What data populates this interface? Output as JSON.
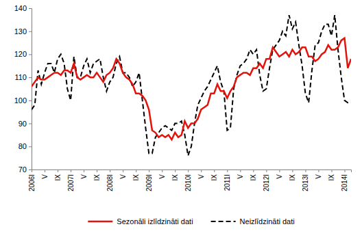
{
  "chart_data": {
    "type": "line",
    "categories": [
      "2006I",
      null,
      null,
      null,
      "V",
      null,
      null,
      null,
      "IX",
      null,
      null,
      null,
      "2007I",
      null,
      null,
      null,
      "V",
      null,
      null,
      null,
      "IX",
      null,
      null,
      null,
      "2008I",
      null,
      null,
      null,
      "V",
      null,
      null,
      null,
      "IX",
      null,
      null,
      null,
      "2009I",
      null,
      null,
      null,
      "V",
      null,
      null,
      null,
      "IX",
      null,
      null,
      null,
      "2010I",
      null,
      null,
      null,
      "V",
      null,
      null,
      null,
      "IX",
      null,
      null,
      null,
      "2011I",
      null,
      null,
      null,
      "V",
      null,
      null,
      null,
      "IX",
      null,
      null,
      null,
      "2012I",
      null,
      null,
      null,
      "V",
      null,
      null,
      null,
      "IX",
      null,
      null,
      null,
      "2013I",
      null,
      null,
      null,
      "V",
      null,
      null,
      null,
      "IX",
      null,
      null,
      null,
      "2014I",
      null,
      null
    ],
    "series": [
      {
        "name": "Sezonāli izlīdzināti dati",
        "color": "#e3120b",
        "line_style": "solid",
        "values": [
          106,
          108,
          110,
          109,
          109,
          110,
          111,
          112,
          112,
          111,
          113,
          113,
          112,
          116,
          110,
          109,
          110,
          111,
          110,
          110,
          112,
          110,
          108,
          111,
          112,
          114,
          118,
          116,
          112,
          110,
          109,
          107,
          103,
          103,
          102,
          100,
          96,
          87,
          86,
          84,
          85,
          84,
          85,
          83,
          86,
          84,
          85,
          91,
          88,
          90,
          90,
          92,
          96,
          97,
          98,
          103,
          103,
          107,
          104,
          104,
          101,
          104,
          106,
          110,
          111,
          112,
          112,
          111,
          114,
          114,
          116,
          114,
          118,
          118,
          123,
          121,
          119,
          120,
          121,
          119,
          122,
          120,
          121,
          123,
          123,
          119,
          119,
          117,
          118,
          120,
          121,
          124,
          122,
          122,
          123,
          126,
          127,
          114,
          118
        ]
      },
      {
        "name": "Neizlīdzināti dati",
        "color": "#000000",
        "line_style": "dashed",
        "values": [
          96,
          98,
          113,
          107,
          112,
          116,
          116,
          112,
          118,
          120,
          116,
          105,
          100,
          119,
          110,
          110,
          115,
          118,
          112,
          116,
          117,
          118,
          110,
          104,
          108,
          110,
          116,
          119,
          112,
          112,
          110,
          106,
          108,
          112,
          100,
          88,
          77,
          77,
          84,
          86,
          88,
          89,
          88,
          87,
          90,
          90,
          91,
          85,
          76,
          80,
          90,
          98,
          101,
          104,
          106,
          109,
          112,
          115,
          108,
          104,
          87,
          88,
          105,
          111,
          115,
          116,
          118,
          122,
          120,
          122,
          111,
          104,
          105,
          114,
          122,
          124,
          126,
          130,
          128,
          137,
          131,
          134,
          124,
          115,
          103,
          99,
          113,
          124,
          125,
          130,
          133,
          133,
          128,
          137,
          122,
          110,
          100,
          99,
          99
        ]
      }
    ],
    "ylim": [
      70,
      140
    ],
    "yticks": [
      70,
      80,
      90,
      100,
      110,
      120,
      130,
      140
    ],
    "grid": false,
    "legend": "bottom"
  }
}
